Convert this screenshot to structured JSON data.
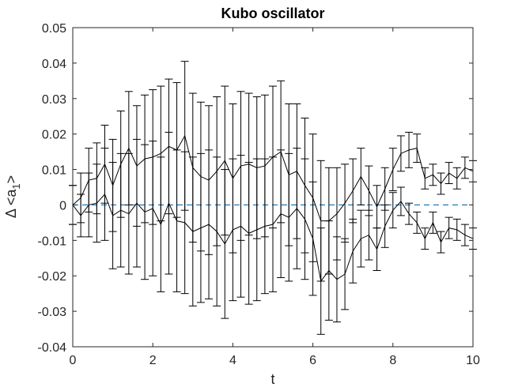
{
  "chart_data": {
    "type": "line",
    "title": "Kubo oscillator",
    "xlabel": "t",
    "ylabel": "Δ <a1>",
    "ylabel_parts": {
      "prefix": "Δ <a",
      "subscript": "1",
      "suffix": ">"
    },
    "xlim": [
      0,
      10
    ],
    "ylim": [
      -0.04,
      0.05
    ],
    "xticks": [
      "0",
      "2",
      "4",
      "6",
      "8",
      "10"
    ],
    "yticks": [
      "-0.04",
      "-0.03",
      "-0.02",
      "-0.01",
      "0",
      "0.01",
      "0.02",
      "0.03",
      "0.04",
      "0.05"
    ],
    "grid": false,
    "colors": {
      "series": "#000000",
      "reference": "#0072BD",
      "axes": "#262626"
    },
    "x": [
      0,
      0.2,
      0.4,
      0.6,
      0.8,
      1.0,
      1.2,
      1.4,
      1.6,
      1.8,
      2.0,
      2.2,
      2.4,
      2.6,
      2.8,
      3.0,
      3.2,
      3.4,
      3.6,
      3.8,
      4.0,
      4.2,
      4.4,
      4.6,
      4.8,
      5.0,
      5.2,
      5.4,
      5.6,
      5.8,
      6.0,
      6.2,
      6.4,
      6.6,
      6.8,
      7.0,
      7.2,
      7.4,
      7.6,
      7.8,
      8.0,
      8.2,
      8.4,
      8.6,
      8.8,
      9.0,
      9.2,
      9.4,
      9.6,
      9.8,
      10.0
    ],
    "series": [
      {
        "values": [
          0.0,
          0.002,
          0.007,
          0.0075,
          0.0115,
          0.0055,
          0.0115,
          0.016,
          0.011,
          0.013,
          0.0135,
          0.0145,
          0.0165,
          0.0155,
          0.0195,
          0.0105,
          0.008,
          0.007,
          0.0095,
          0.0125,
          0.0075,
          0.011,
          0.0115,
          0.0105,
          0.011,
          0.0135,
          0.015,
          0.0085,
          0.0095,
          0.0055,
          0.002,
          -0.0045,
          -0.0045,
          -0.0025,
          0.0005,
          0.004,
          0.008,
          0.004,
          -0.0005,
          0.0045,
          0.01,
          0.0145,
          0.0155,
          0.016,
          0.0075,
          0.0085,
          0.006,
          0.009,
          0.0075,
          0.0105,
          0.0095
        ],
        "error": [
          0.0055,
          0.007,
          0.009,
          0.01,
          0.011,
          0.013,
          0.015,
          0.016,
          0.017,
          0.018,
          0.019,
          0.019,
          0.019,
          0.019,
          0.021,
          0.021,
          0.021,
          0.021,
          0.021,
          0.021,
          0.021,
          0.021,
          0.02,
          0.02,
          0.02,
          0.02,
          0.02,
          0.02,
          0.019,
          0.019,
          0.018,
          0.017,
          0.015,
          0.013,
          0.011,
          0.009,
          0.008,
          0.007,
          0.006,
          0.006,
          0.006,
          0.005,
          0.005,
          0.004,
          0.003,
          0.003,
          0.003,
          0.003,
          0.003,
          0.003,
          0.003
        ]
      },
      {
        "values": [
          0.0,
          -0.003,
          0.0,
          0.0005,
          0.003,
          -0.003,
          -0.0015,
          -0.0025,
          0.0005,
          -0.002,
          -0.001,
          -0.0055,
          0.0005,
          -0.0045,
          -0.005,
          -0.0075,
          -0.0065,
          -0.0055,
          -0.0075,
          -0.011,
          -0.007,
          -0.006,
          -0.008,
          -0.007,
          -0.006,
          -0.0055,
          -0.0025,
          -0.0035,
          -0.001,
          -0.004,
          -0.0095,
          -0.0215,
          -0.0185,
          -0.021,
          -0.0195,
          -0.013,
          -0.0095,
          -0.0085,
          -0.0125,
          -0.006,
          -0.0015,
          0.001,
          -0.0025,
          -0.005,
          -0.0095,
          -0.005,
          -0.0105,
          -0.0065,
          -0.007,
          -0.0085,
          -0.0095
        ],
        "error": [
          0.0055,
          0.006,
          0.009,
          0.011,
          0.013,
          0.015,
          0.016,
          0.017,
          0.018,
          0.019,
          0.019,
          0.019,
          0.02,
          0.02,
          0.02,
          0.021,
          0.021,
          0.021,
          0.021,
          0.021,
          0.02,
          0.02,
          0.02,
          0.02,
          0.019,
          0.019,
          0.018,
          0.018,
          0.017,
          0.017,
          0.016,
          0.015,
          0.014,
          0.012,
          0.01,
          0.009,
          0.008,
          0.007,
          0.006,
          0.006,
          0.005,
          0.004,
          0.003,
          0.003,
          0.003,
          0.003,
          0.003,
          0.003,
          0.003,
          0.003,
          0.003
        ]
      }
    ],
    "reference_line": {
      "y": 0,
      "style": "dashed"
    }
  }
}
